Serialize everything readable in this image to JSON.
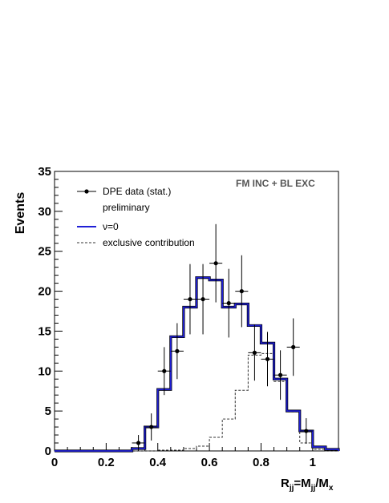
{
  "chart_data": {
    "type": "histogram",
    "xlim": [
      0,
      1.1
    ],
    "ylim": [
      0,
      35
    ],
    "x_ticks": [
      "0",
      "0.2",
      "0.4",
      "0.6",
      "0.8",
      "1"
    ],
    "y_ticks": [
      "0",
      "5",
      "10",
      "15",
      "20",
      "25",
      "30",
      "35"
    ],
    "ylabel": "Events",
    "xlabel": {
      "R": "R",
      "jj": "jj",
      "eq": "=M",
      "jj2": "jj",
      "slash": "/M",
      "x": "x"
    },
    "annotation": "FM INC + BL EXC",
    "legend": {
      "data": "DPE data (stat.)",
      "note": "preliminary",
      "model": "ν=0",
      "exclusive": "exclusive contribution"
    },
    "bin_width": 0.05,
    "bin_edges_start": 0.3,
    "model_hist": [
      0.3,
      3.0,
      7.7,
      14.3,
      18.0,
      21.7,
      21.4,
      18.0,
      18.4,
      15.7,
      13.5,
      9.0,
      5.0,
      2.5,
      0.5,
      0.2
    ],
    "exclusive_hist": [
      0,
      0,
      0.1,
      0.1,
      0.3,
      0.6,
      1.7,
      4.0,
      7.6,
      12.0,
      12.2,
      8.7,
      4.9,
      1.0,
      0.2,
      0
    ],
    "data_points": [
      {
        "x": 0.325,
        "y": 1.0,
        "err": 1.0
      },
      {
        "x": 0.375,
        "y": 3.0,
        "err": 1.7
      },
      {
        "x": 0.425,
        "y": 10.0,
        "err": 3.0
      },
      {
        "x": 0.475,
        "y": 12.5,
        "err": 3.5
      },
      {
        "x": 0.525,
        "y": 19.0,
        "err": 4.4
      },
      {
        "x": 0.575,
        "y": 19.0,
        "err": 4.4
      },
      {
        "x": 0.625,
        "y": 23.5,
        "err": 4.9
      },
      {
        "x": 0.675,
        "y": 18.5,
        "err": 4.3
      },
      {
        "x": 0.725,
        "y": 20.0,
        "err": 4.5
      },
      {
        "x": 0.775,
        "y": 12.3,
        "err": 3.5
      },
      {
        "x": 0.825,
        "y": 11.5,
        "err": 3.4
      },
      {
        "x": 0.875,
        "y": 9.5,
        "err": 3.1
      },
      {
        "x": 0.925,
        "y": 13.0,
        "err": 3.6
      },
      {
        "x": 0.975,
        "y": 2.5,
        "err": 1.6
      }
    ],
    "colors": {
      "model": "#1f1fd6",
      "exclusive": "#333333",
      "data": "#000000"
    }
  }
}
